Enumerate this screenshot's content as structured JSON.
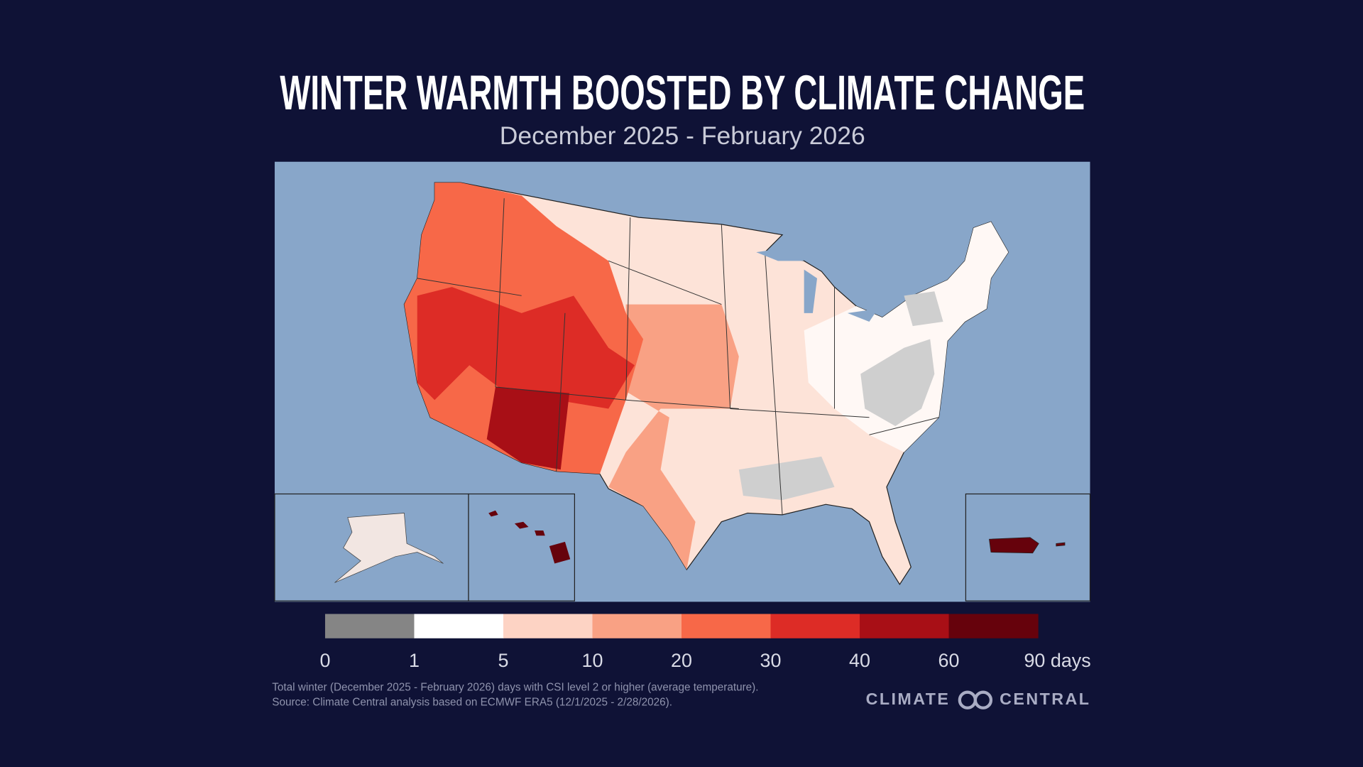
{
  "header": {
    "title": "WINTER WARMTH BOOSTED BY CLIMATE CHANGE",
    "subtitle": "December 2025 - February 2026"
  },
  "legend": {
    "colors": [
      "#858585",
      "#ffffff",
      "#fdd3c4",
      "#f9a184",
      "#f76848",
      "#dd2c26",
      "#a80f16",
      "#66020c"
    ],
    "ticks": [
      0,
      1,
      5,
      10,
      20,
      30,
      40,
      60,
      {
        "value": 90,
        "label": "90 days"
      }
    ]
  },
  "footer": {
    "notes": [
      "Total winter (December 2025 - February 2026) days with CSI level 2 or higher (average temperature).",
      "Source: Climate Central analysis based on ECMWF ERA5 (12/1/2025 - 2/28/2026)."
    ],
    "logo": {
      "left": "CLIMATE",
      "right": "CENTRAL"
    }
  }
}
